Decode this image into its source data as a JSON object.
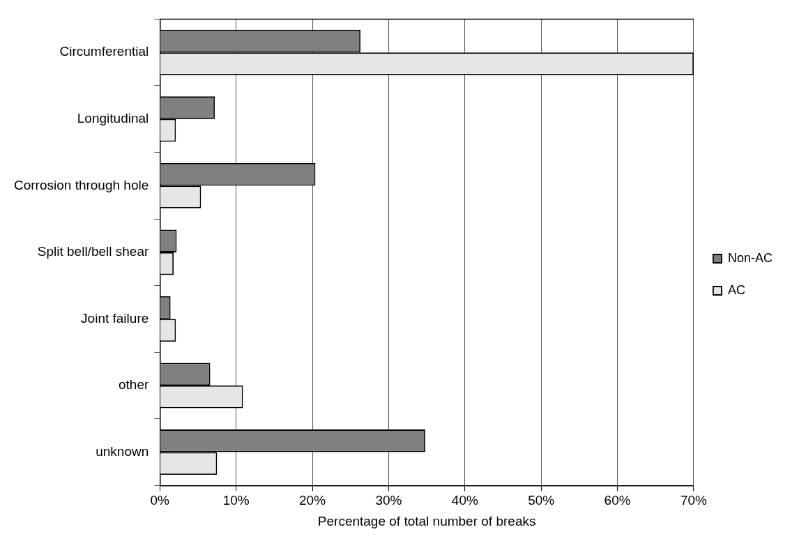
{
  "chart_data": {
    "type": "bar",
    "orientation": "horizontal",
    "xlabel": "Percentage of total number of breaks",
    "categories": [
      "Circumferential",
      "Longitudinal",
      "Corrosion through hole",
      "Split bell/bell shear",
      "Joint failure",
      "other",
      "unknown"
    ],
    "series": [
      {
        "name": "Non-AC",
        "color": "#808080",
        "values": [
          26.3,
          7.2,
          20.4,
          2.2,
          1.4,
          6.6,
          34.8
        ]
      },
      {
        "name": "AC",
        "color": "#e6e6e6",
        "values": [
          70,
          2.1,
          5.4,
          1.8,
          2.1,
          10.9,
          7.5
        ]
      }
    ],
    "xlim": [
      0,
      70
    ],
    "xticks": [
      {
        "value": 0,
        "label": "0%"
      },
      {
        "value": 10,
        "label": "10%"
      },
      {
        "value": 20,
        "label": "20%"
      },
      {
        "value": 30,
        "label": "30%"
      },
      {
        "value": 40,
        "label": "40%"
      },
      {
        "value": 50,
        "label": "50%"
      },
      {
        "value": 60,
        "label": "60%"
      },
      {
        "value": 70,
        "label": "70%"
      }
    ],
    "grid": "x",
    "legend": "right"
  }
}
